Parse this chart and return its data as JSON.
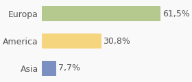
{
  "categories": [
    "Asia",
    "America",
    "Europa"
  ],
  "values": [
    7.7,
    30.8,
    61.5
  ],
  "labels": [
    "7,7%",
    "30,8%",
    "61,5%"
  ],
  "colors": [
    "#7b8fc0",
    "#f5d57e",
    "#b5c98e"
  ],
  "xlim": [
    0,
    75
  ],
  "background_color": "#f9f9f9",
  "bar_height": 0.55,
  "label_fontsize": 9,
  "tick_fontsize": 9
}
